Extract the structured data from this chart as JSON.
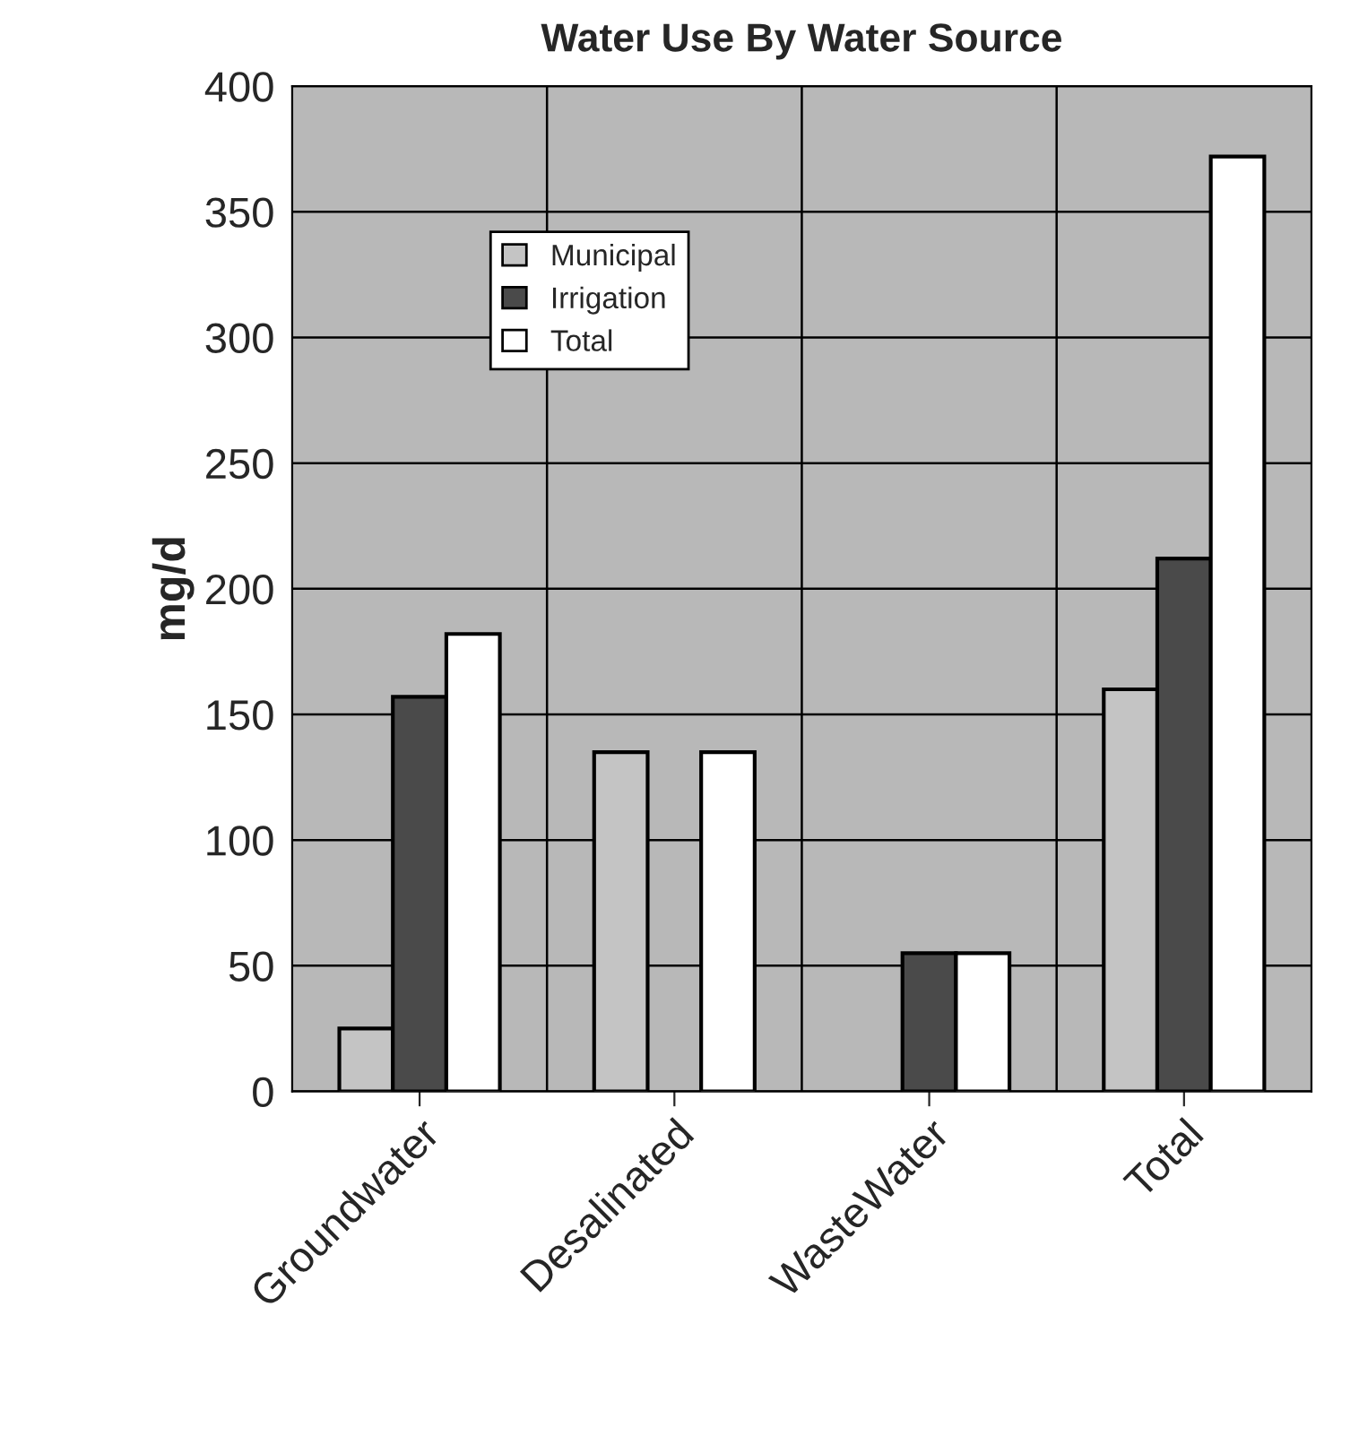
{
  "chart_data": {
    "type": "bar",
    "title": "Water Use By Water Source",
    "ylabel": "mg/d",
    "categories": [
      "Groundwater",
      "Desalinated",
      "WasteWater",
      "Total"
    ],
    "series": [
      {
        "name": "Municipal",
        "color": "#c4c4c4",
        "values": [
          25,
          135,
          null,
          160
        ]
      },
      {
        "name": "Irrigation",
        "color": "#4a4a4a",
        "values": [
          157,
          null,
          55,
          212
        ]
      },
      {
        "name": "Total",
        "color": "#ffffff",
        "values": [
          182,
          135,
          55,
          372
        ]
      }
    ],
    "ylim": [
      0,
      400
    ],
    "yticks": [
      0,
      50,
      100,
      150,
      200,
      250,
      300,
      350,
      400
    ],
    "grid": true,
    "legend": "top left"
  }
}
